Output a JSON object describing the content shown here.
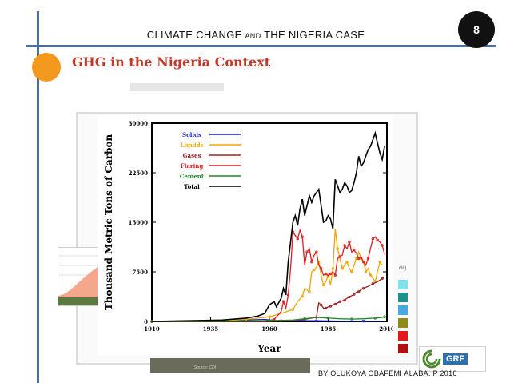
{
  "header": {
    "title_part1": "CLIMATE  CHANGE ",
    "title_and": "AND",
    "title_part2": " THE  NIGERIA  CASE",
    "page_number": "8"
  },
  "subtitle": "GHG in the Nigeria Context",
  "footer": {
    "author": "BY  OLUKOYA  OBAFEMI  ALABA.  P  2016",
    "logo_text": "GRF",
    "source_fragment": "Source: CDI"
  },
  "side_legend": {
    "label": "(%)",
    "colors": [
      "#7fe0e8",
      "#1f8f8a",
      "#4aa8e0",
      "#8b8b1a",
      "#e01818",
      "#b01010"
    ]
  },
  "chart_data": {
    "type": "line",
    "title": "",
    "xlabel": "Year",
    "ylabel": "Thousand Metric Tons of Carbon",
    "xlim": [
      1910,
      2010
    ],
    "ylim": [
      0,
      30000
    ],
    "x_ticks": [
      "1910",
      "1935",
      "1960",
      "1985",
      "2010"
    ],
    "y_ticks": [
      "0",
      "7500",
      "15000",
      "22500",
      "30000"
    ],
    "legend_position": "top-left",
    "series": [
      {
        "name": "Solids",
        "color": "#1a1ad6",
        "points": [
          [
            1910,
            0
          ],
          [
            1930,
            100
          ],
          [
            1950,
            200
          ],
          [
            1958,
            300
          ],
          [
            1962,
            150
          ],
          [
            1970,
            100
          ],
          [
            1980,
            100
          ],
          [
            1990,
            50
          ],
          [
            2000,
            50
          ],
          [
            2008,
            50
          ]
        ]
      },
      {
        "name": "Liquids",
        "color": "#f0a500",
        "points": [
          [
            1910,
            0
          ],
          [
            1940,
            100
          ],
          [
            1950,
            300
          ],
          [
            1955,
            500
          ],
          [
            1960,
            700
          ],
          [
            1965,
            1200
          ],
          [
            1970,
            1800
          ],
          [
            1972,
            3000
          ],
          [
            1974,
            3800
          ],
          [
            1975,
            5000
          ],
          [
            1977,
            4500
          ],
          [
            1978,
            7500
          ],
          [
            1979,
            7800
          ],
          [
            1980,
            8200
          ],
          [
            1981,
            9000
          ],
          [
            1982,
            7000
          ],
          [
            1983,
            5500
          ],
          [
            1984,
            6000
          ],
          [
            1985,
            7000
          ],
          [
            1986,
            5500
          ],
          [
            1987,
            8000
          ],
          [
            1988,
            14000
          ],
          [
            1989,
            11000
          ],
          [
            1990,
            9500
          ],
          [
            1991,
            8000
          ],
          [
            1992,
            8500
          ],
          [
            1993,
            9000
          ],
          [
            1994,
            8000
          ],
          [
            1995,
            7500
          ],
          [
            1996,
            8500
          ],
          [
            1997,
            9500
          ],
          [
            1998,
            10500
          ],
          [
            1999,
            9500
          ],
          [
            2000,
            9000
          ],
          [
            2001,
            7500
          ],
          [
            2002,
            8000
          ],
          [
            2003,
            7000
          ],
          [
            2004,
            6500
          ],
          [
            2005,
            6000
          ],
          [
            2006,
            7500
          ],
          [
            2007,
            9000
          ],
          [
            2008,
            8500
          ]
        ]
      },
      {
        "name": "Gases",
        "color": "#a02020",
        "points": [
          [
            1910,
            0
          ],
          [
            1960,
            0
          ],
          [
            1965,
            100
          ],
          [
            1970,
            150
          ],
          [
            1975,
            300
          ],
          [
            1978,
            500
          ],
          [
            1980,
            600
          ],
          [
            1981,
            2800
          ],
          [
            1982,
            2500
          ],
          [
            1983,
            2000
          ],
          [
            1984,
            2000
          ],
          [
            1985,
            2200
          ],
          [
            1986,
            2300
          ],
          [
            1987,
            2500
          ],
          [
            1988,
            2600
          ],
          [
            1989,
            2800
          ],
          [
            1990,
            3000
          ],
          [
            1991,
            3100
          ],
          [
            1992,
            3200
          ],
          [
            1993,
            3500
          ],
          [
            1994,
            3700
          ],
          [
            1995,
            3900
          ],
          [
            1996,
            4100
          ],
          [
            1997,
            4400
          ],
          [
            1998,
            4500
          ],
          [
            1999,
            4800
          ],
          [
            2000,
            5000
          ],
          [
            2002,
            5300
          ],
          [
            2004,
            5700
          ],
          [
            2006,
            6000
          ],
          [
            2008,
            6500
          ],
          [
            2009,
            6800
          ]
        ]
      },
      {
        "name": "Flaring",
        "color": "#e02020",
        "points": [
          [
            1910,
            0
          ],
          [
            1958,
            0
          ],
          [
            1962,
            300
          ],
          [
            1965,
            1500
          ],
          [
            1966,
            3000
          ],
          [
            1967,
            2000
          ],
          [
            1968,
            4000
          ],
          [
            1969,
            8000
          ],
          [
            1970,
            13500
          ],
          [
            1971,
            13000
          ],
          [
            1972,
            12500
          ],
          [
            1973,
            13800
          ],
          [
            1974,
            12800
          ],
          [
            1975,
            8500
          ],
          [
            1976,
            10500
          ],
          [
            1977,
            11000
          ],
          [
            1978,
            9000
          ],
          [
            1979,
            10000
          ],
          [
            1980,
            10500
          ],
          [
            1981,
            8500
          ],
          [
            1982,
            8000
          ],
          [
            1983,
            7000
          ],
          [
            1984,
            7200
          ],
          [
            1985,
            6900
          ],
          [
            1986,
            7200
          ],
          [
            1987,
            7500
          ],
          [
            1988,
            7000
          ],
          [
            1989,
            9500
          ],
          [
            1990,
            9800
          ],
          [
            1991,
            10000
          ],
          [
            1992,
            11500
          ],
          [
            1993,
            11000
          ],
          [
            1994,
            12000
          ],
          [
            1995,
            10500
          ],
          [
            1996,
            10800
          ],
          [
            1997,
            10300
          ],
          [
            1998,
            9500
          ],
          [
            1999,
            9800
          ],
          [
            2000,
            9000
          ],
          [
            2001,
            8500
          ],
          [
            2002,
            9500
          ],
          [
            2003,
            11000
          ],
          [
            2004,
            12500
          ],
          [
            2005,
            12800
          ],
          [
            2006,
            12300
          ],
          [
            2007,
            12000
          ],
          [
            2008,
            11500
          ],
          [
            2009,
            10200
          ]
        ]
      },
      {
        "name": "Cement",
        "color": "#1e8a1e",
        "points": [
          [
            1910,
            0
          ],
          [
            1950,
            50
          ],
          [
            1960,
            100
          ],
          [
            1970,
            200
          ],
          [
            1975,
            400
          ],
          [
            1980,
            600
          ],
          [
            1985,
            500
          ],
          [
            1990,
            400
          ],
          [
            1995,
            350
          ],
          [
            2000,
            400
          ],
          [
            2005,
            500
          ],
          [
            2008,
            600
          ],
          [
            2009,
            700
          ]
        ]
      },
      {
        "name": "Total",
        "color": "#000000",
        "points": [
          [
            1910,
            0
          ],
          [
            1940,
            200
          ],
          [
            1950,
            500
          ],
          [
            1955,
            800
          ],
          [
            1958,
            1200
          ],
          [
            1960,
            2500
          ],
          [
            1962,
            3000
          ],
          [
            1963,
            2200
          ],
          [
            1965,
            3500
          ],
          [
            1966,
            5000
          ],
          [
            1967,
            4000
          ],
          [
            1968,
            9000
          ],
          [
            1969,
            12000
          ],
          [
            1970,
            15000
          ],
          [
            1971,
            16000
          ],
          [
            1972,
            14500
          ],
          [
            1973,
            17000
          ],
          [
            1974,
            18500
          ],
          [
            1975,
            16000
          ],
          [
            1976,
            17500
          ],
          [
            1977,
            19000
          ],
          [
            1978,
            18000
          ],
          [
            1979,
            19000
          ],
          [
            1980,
            19500
          ],
          [
            1981,
            20000
          ],
          [
            1982,
            17500
          ],
          [
            1983,
            15000
          ],
          [
            1984,
            15200
          ],
          [
            1985,
            16000
          ],
          [
            1986,
            15500
          ],
          [
            1987,
            14000
          ],
          [
            1988,
            21500
          ],
          [
            1989,
            20500
          ],
          [
            1990,
            19500
          ],
          [
            1991,
            20000
          ],
          [
            1992,
            21000
          ],
          [
            1993,
            20500
          ],
          [
            1994,
            19500
          ],
          [
            1995,
            19800
          ],
          [
            1996,
            21000
          ],
          [
            1997,
            22500
          ],
          [
            1998,
            25000
          ],
          [
            1999,
            23500
          ],
          [
            2000,
            24000
          ],
          [
            2001,
            25000
          ],
          [
            2002,
            26000
          ],
          [
            2003,
            26500
          ],
          [
            2004,
            27500
          ],
          [
            2005,
            28500
          ],
          [
            2006,
            27000
          ],
          [
            2007,
            25500
          ],
          [
            2008,
            24500
          ],
          [
            2009,
            26500
          ]
        ]
      }
    ]
  }
}
